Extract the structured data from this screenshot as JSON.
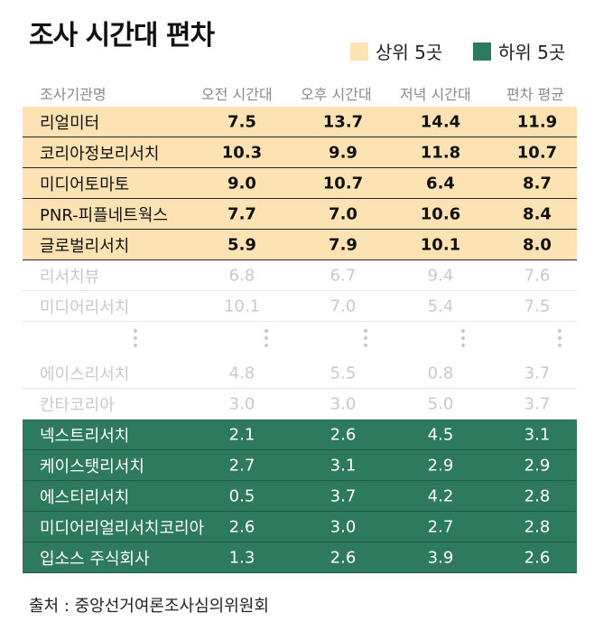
{
  "title": "조사 시간대 편차",
  "legend": {
    "top5": {
      "label": "상위 5곳",
      "color": "#fde2b3"
    },
    "bottom5": {
      "label": "하위 5곳",
      "color": "#2e7a5f"
    }
  },
  "ellipsis": "⋮",
  "source": "출처 : 중앙선거여론조사심의위원회",
  "chart_data": {
    "type": "table",
    "title": "조사 시간대 편차",
    "columns": [
      "조사기관명",
      "오전 시간대",
      "오후 시간대",
      "저녁 시간대",
      "편차 평균"
    ],
    "rows": [
      {
        "group": "top",
        "name": "리얼미터",
        "values": [
          "7.5",
          "13.7",
          "14.4",
          "11.9"
        ]
      },
      {
        "group": "top",
        "name": "코리아정보리서치",
        "values": [
          "10.3",
          "9.9",
          "11.8",
          "10.7"
        ]
      },
      {
        "group": "top",
        "name": "미디어토마토",
        "values": [
          "9.0",
          "10.7",
          "6.4",
          "8.7"
        ]
      },
      {
        "group": "top",
        "name": "PNR-피플네트웍스",
        "values": [
          "7.7",
          "7.0",
          "10.6",
          "8.4"
        ]
      },
      {
        "group": "top",
        "name": "글로벌리서치",
        "values": [
          "5.9",
          "7.9",
          "10.1",
          "8.0"
        ]
      },
      {
        "group": "mid",
        "name": "리서치뷰",
        "values": [
          "6.8",
          "6.7",
          "9.4",
          "7.6"
        ]
      },
      {
        "group": "mid",
        "name": "미디어리서치",
        "values": [
          "10.1",
          "7.0",
          "5.4",
          "7.5"
        ]
      },
      {
        "group": "mid",
        "name": "에이스리서치",
        "values": [
          "4.8",
          "5.5",
          "0.8",
          "3.7"
        ]
      },
      {
        "group": "mid",
        "name": "칸타코리아",
        "values": [
          "3.0",
          "3.0",
          "5.0",
          "3.7"
        ]
      },
      {
        "group": "bottom",
        "name": "넥스트리서치",
        "values": [
          "2.1",
          "2.6",
          "4.5",
          "3.1"
        ]
      },
      {
        "group": "bottom",
        "name": "케이스탯리서치",
        "values": [
          "2.7",
          "3.1",
          "2.9",
          "2.9"
        ]
      },
      {
        "group": "bottom",
        "name": "에스티리서치",
        "values": [
          "0.5",
          "3.7",
          "4.2",
          "2.8"
        ]
      },
      {
        "group": "bottom",
        "name": "미디어리얼리서치코리아",
        "values": [
          "2.6",
          "3.0",
          "2.7",
          "2.8"
        ]
      },
      {
        "group": "bottom",
        "name": "입소스 주식회사",
        "values": [
          "1.3",
          "2.6",
          "3.9",
          "2.6"
        ]
      }
    ]
  }
}
